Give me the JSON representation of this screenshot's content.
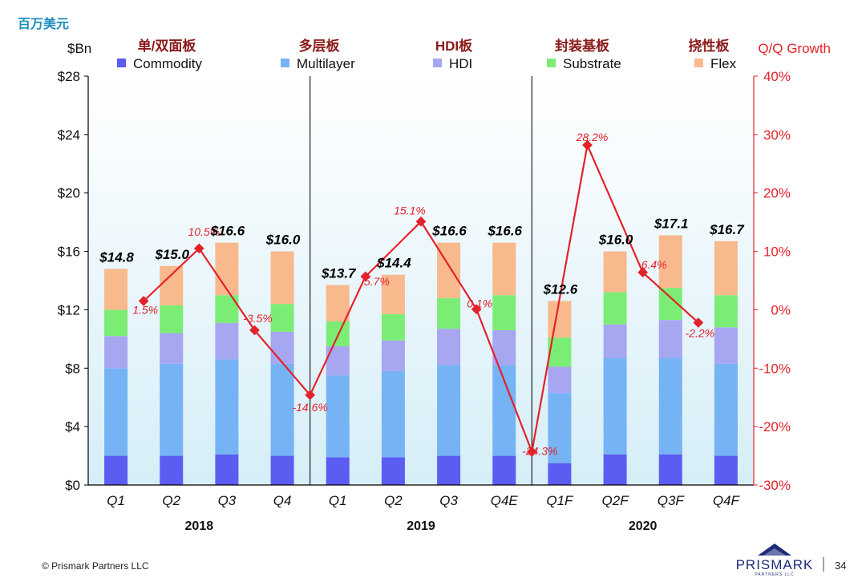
{
  "header": {
    "unit_cn": "百万美元",
    "y_left_label": "$Bn",
    "y_right_label": "Q/Q Growth"
  },
  "legend": [
    {
      "cn": "单/双面板",
      "en": "Commodity",
      "color": "#5b5cf2"
    },
    {
      "cn": "多层板",
      "en": "Multilayer",
      "color": "#75b3f4"
    },
    {
      "cn": "HDI板",
      "en": "HDI",
      "color": "#a6a6f1"
    },
    {
      "cn": "封装基板",
      "en": "Substrate",
      "color": "#7ced74"
    },
    {
      "cn": "挠性板",
      "en": "Flex",
      "color": "#f8b98d"
    }
  ],
  "years": [
    "2018",
    "2019",
    "2020"
  ],
  "footer": {
    "copyright": "© Prismark Partners LLC",
    "logo_text": "PRISMARK",
    "logo_sub": "PARTNERS LLC",
    "page_number": "34"
  },
  "colors": {
    "growth_line": "#e3222b",
    "right_axis_text": "#e3222b",
    "legend_cn_text": "#8b1a1a",
    "unit_text": "#1d8fbf",
    "plot_bg_top": "#ffffff",
    "plot_bg_bottom": "#d6eef8"
  },
  "chart_data": {
    "type": "bar",
    "stacked": true,
    "categories": [
      "Q1",
      "Q2",
      "Q3",
      "Q4",
      "Q1",
      "Q2",
      "Q3",
      "Q4E",
      "Q1F",
      "Q2F",
      "Q3F",
      "Q4F"
    ],
    "groups": [
      {
        "year": "2018",
        "categories": [
          "Q1",
          "Q2",
          "Q3",
          "Q4"
        ]
      },
      {
        "year": "2019",
        "categories": [
          "Q1",
          "Q2",
          "Q3",
          "Q4E"
        ]
      },
      {
        "year": "2020",
        "categories": [
          "Q1F",
          "Q2F",
          "Q3F",
          "Q4F"
        ]
      }
    ],
    "series": [
      {
        "name": "Commodity",
        "values": [
          2.0,
          2.0,
          2.1,
          2.0,
          1.9,
          1.9,
          2.0,
          2.0,
          1.5,
          2.1,
          2.1,
          2.0
        ]
      },
      {
        "name": "Multilayer",
        "values": [
          6.0,
          6.3,
          6.5,
          6.3,
          5.6,
          5.9,
          6.2,
          6.2,
          4.8,
          6.6,
          6.6,
          6.3
        ]
      },
      {
        "name": "HDI",
        "values": [
          2.2,
          2.1,
          2.5,
          2.2,
          2.0,
          2.1,
          2.5,
          2.4,
          1.8,
          2.3,
          2.6,
          2.5
        ]
      },
      {
        "name": "Substrate",
        "values": [
          1.8,
          1.9,
          1.9,
          1.9,
          1.7,
          1.8,
          2.1,
          2.4,
          2.0,
          2.2,
          2.2,
          2.2
        ]
      },
      {
        "name": "Flex",
        "values": [
          2.8,
          2.7,
          3.6,
          3.6,
          2.5,
          2.7,
          3.8,
          3.6,
          2.5,
          2.8,
          3.6,
          3.7
        ]
      }
    ],
    "totals": [
      14.8,
      15.0,
      16.6,
      16.0,
      13.7,
      14.4,
      16.6,
      16.6,
      12.6,
      16.0,
      17.1,
      16.7
    ],
    "total_labels": [
      "$14.8",
      "$15.0",
      "$16.6",
      "$16.0",
      "$13.7",
      "$14.4",
      "$16.6",
      "$16.6",
      "$12.6",
      "$16.0",
      "$17.1",
      "$16.7"
    ],
    "growth": {
      "name": "Q/Q Growth",
      "values": [
        1.5,
        10.5,
        -3.5,
        -14.6,
        5.7,
        15.1,
        0.1,
        -24.3,
        28.2,
        6.4,
        -2.2
      ],
      "labels": [
        "1.5%",
        "10.5%",
        "-3.5%",
        "-14.6%",
        "5.7%",
        "15.1%",
        "0.1%",
        "-24.3%",
        "28.2%",
        "6.4%",
        "-2.2%"
      ]
    },
    "y_left": {
      "label": "$Bn",
      "range": [
        0,
        28
      ],
      "ticks": [
        "$0",
        "$4",
        "$8",
        "$12",
        "$16",
        "$20",
        "$24",
        "$28"
      ]
    },
    "y_right": {
      "label": "Q/Q Growth",
      "range": [
        -30,
        40
      ],
      "ticks": [
        "-30%",
        "-20%",
        "-10%",
        "0%",
        "10%",
        "20%",
        "30%",
        "40%"
      ]
    },
    "grid": false,
    "legend_position": "top"
  }
}
